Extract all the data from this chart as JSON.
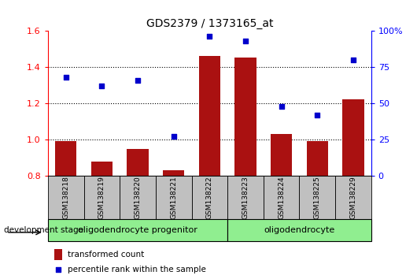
{
  "title": "GDS2379 / 1373165_at",
  "samples": [
    "GSM138218",
    "GSM138219",
    "GSM138220",
    "GSM138221",
    "GSM138222",
    "GSM138223",
    "GSM138224",
    "GSM138225",
    "GSM138229"
  ],
  "transformed_count": [
    0.99,
    0.88,
    0.95,
    0.83,
    1.46,
    1.45,
    1.03,
    0.99,
    1.22
  ],
  "percentile_rank": [
    68,
    62,
    66,
    27,
    96,
    93,
    48,
    42,
    80
  ],
  "ylim_left": [
    0.8,
    1.6
  ],
  "ylim_right": [
    0,
    100
  ],
  "yticks_left": [
    0.8,
    1.0,
    1.2,
    1.4,
    1.6
  ],
  "yticks_right": [
    0,
    25,
    50,
    75,
    100
  ],
  "ytick_labels_right": [
    "0",
    "25",
    "50",
    "75",
    "100%"
  ],
  "bar_color": "#AA1111",
  "dot_color": "#0000CC",
  "group1_label": "oligodendrocyte progenitor",
  "group2_label": "oligodendrocyte",
  "group1_count": 5,
  "group2_count": 4,
  "legend_bar_label": "transformed count",
  "legend_dot_label": "percentile rank within the sample",
  "dev_stage_label": "development stage",
  "group_bg_color": "#90EE90",
  "sample_bg_color": "#C0C0C0",
  "hline_dotted": [
    1.0,
    1.2,
    1.4
  ]
}
